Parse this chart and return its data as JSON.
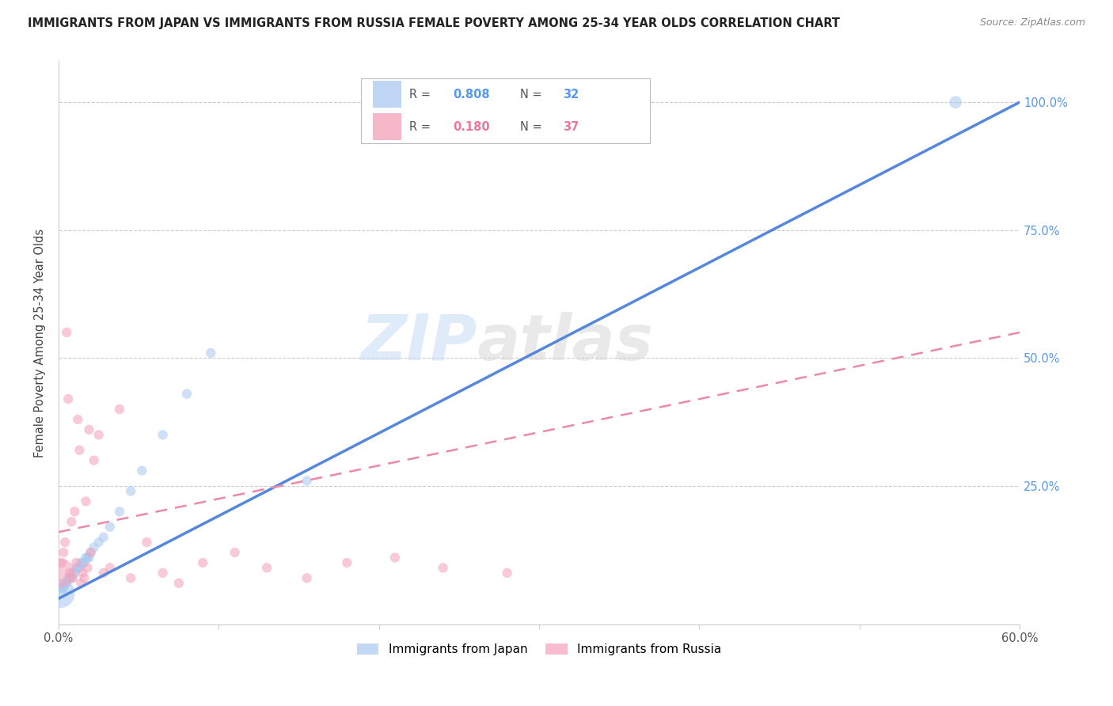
{
  "title": "IMMIGRANTS FROM JAPAN VS IMMIGRANTS FROM RUSSIA FEMALE POVERTY AMONG 25-34 YEAR OLDS CORRELATION CHART",
  "source": "Source: ZipAtlas.com",
  "ylabel": "Female Poverty Among 25-34 Year Olds",
  "xlim": [
    0.0,
    0.6
  ],
  "ylim": [
    -0.02,
    1.08
  ],
  "xtick_vals": [
    0.0,
    0.1,
    0.2,
    0.3,
    0.4,
    0.5,
    0.6
  ],
  "xtick_labels": [
    "0.0%",
    "",
    "",
    "",
    "",
    "",
    "60.0%"
  ],
  "ytick_vals": [
    0.25,
    0.5,
    0.75,
    1.0
  ],
  "right_ytick_labels": [
    "25.0%",
    "50.0%",
    "75.0%",
    "100.0%"
  ],
  "color_japan": "#A8C8F0",
  "color_russia": "#F4A0B8",
  "line_japan": "#5588DD",
  "line_russia": "#EE88A8",
  "watermark_zip": "ZIP",
  "watermark_atlas": "atlas",
  "legend_R_japan": "0.808",
  "legend_N_japan": "32",
  "legend_R_russia": "0.180",
  "legend_N_russia": "37",
  "japan_x": [
    0.001,
    0.002,
    0.003,
    0.004,
    0.005,
    0.006,
    0.007,
    0.008,
    0.009,
    0.01,
    0.011,
    0.012,
    0.013,
    0.014,
    0.015,
    0.016,
    0.017,
    0.018,
    0.019,
    0.02,
    0.022,
    0.025,
    0.028,
    0.032,
    0.038,
    0.045,
    0.052,
    0.065,
    0.08,
    0.095,
    0.155,
    0.56
  ],
  "japan_y": [
    0.04,
    0.05,
    0.05,
    0.06,
    0.06,
    0.07,
    0.07,
    0.07,
    0.08,
    0.08,
    0.09,
    0.09,
    0.09,
    0.1,
    0.1,
    0.1,
    0.11,
    0.11,
    0.11,
    0.12,
    0.13,
    0.14,
    0.15,
    0.17,
    0.2,
    0.24,
    0.28,
    0.35,
    0.43,
    0.51,
    0.26,
    1.0
  ],
  "japan_sizes": [
    700,
    80,
    80,
    80,
    80,
    80,
    80,
    80,
    80,
    80,
    80,
    80,
    80,
    80,
    80,
    80,
    80,
    80,
    80,
    80,
    80,
    80,
    80,
    80,
    80,
    80,
    80,
    80,
    80,
    80,
    80,
    130
  ],
  "russia_x": [
    0.001,
    0.002,
    0.003,
    0.004,
    0.005,
    0.006,
    0.007,
    0.008,
    0.009,
    0.01,
    0.011,
    0.012,
    0.013,
    0.014,
    0.015,
    0.016,
    0.017,
    0.018,
    0.019,
    0.02,
    0.022,
    0.025,
    0.028,
    0.032,
    0.038,
    0.045,
    0.055,
    0.065,
    0.075,
    0.09,
    0.11,
    0.13,
    0.155,
    0.18,
    0.21,
    0.24,
    0.28
  ],
  "russia_y": [
    0.08,
    0.1,
    0.12,
    0.14,
    0.55,
    0.42,
    0.08,
    0.18,
    0.07,
    0.2,
    0.1,
    0.38,
    0.32,
    0.06,
    0.08,
    0.07,
    0.22,
    0.09,
    0.36,
    0.12,
    0.3,
    0.35,
    0.08,
    0.09,
    0.4,
    0.07,
    0.14,
    0.08,
    0.06,
    0.1,
    0.12,
    0.09,
    0.07,
    0.1,
    0.11,
    0.09,
    0.08
  ],
  "russia_sizes": [
    700,
    80,
    80,
    80,
    80,
    80,
    80,
    80,
    80,
    80,
    80,
    80,
    80,
    80,
    80,
    80,
    80,
    80,
    80,
    80,
    80,
    80,
    80,
    80,
    80,
    80,
    80,
    80,
    80,
    80,
    80,
    80,
    80,
    80,
    80,
    80,
    80
  ],
  "japan_line_x0": 0.0,
  "japan_line_y0": 0.03,
  "japan_line_x1": 0.6,
  "japan_line_y1": 1.0,
  "russia_line_x0": 0.0,
  "russia_line_y0": 0.16,
  "russia_line_x1": 0.6,
  "russia_line_y1": 0.55
}
